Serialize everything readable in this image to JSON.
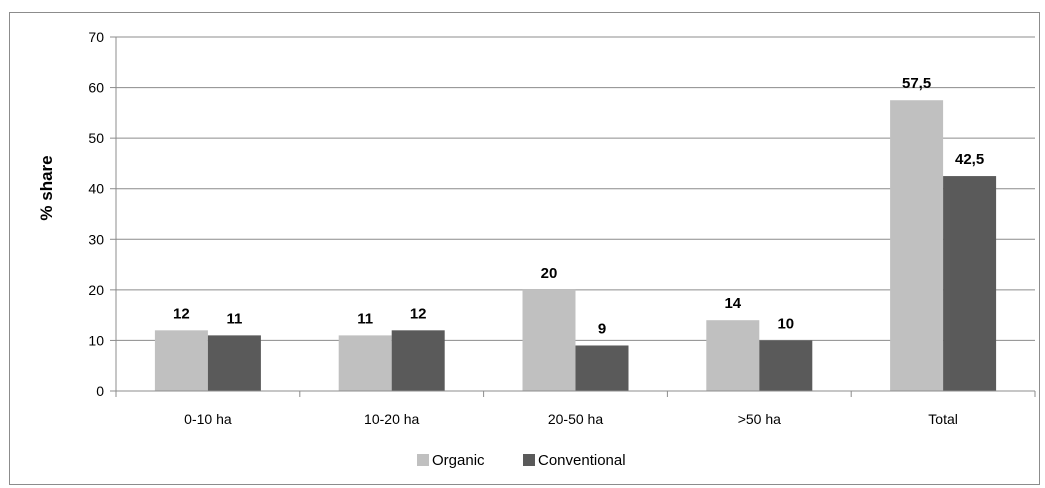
{
  "chart_data": {
    "type": "bar",
    "title": "",
    "xlabel": "",
    "ylabel": "% share",
    "ylim": [
      0,
      70
    ],
    "yticks": [
      0,
      10,
      20,
      30,
      40,
      50,
      60,
      70
    ],
    "grid": true,
    "legend_position": "bottom",
    "categories": [
      "0-10 ha",
      "10-20 ha",
      "20-50 ha",
      ">50 ha",
      "Total"
    ],
    "series": [
      {
        "name": "Organic",
        "values": [
          12,
          11,
          20,
          14,
          57.5
        ],
        "labels": [
          "12",
          "11",
          "20",
          "14",
          "57,5"
        ],
        "color": "#c0c0c0"
      },
      {
        "name": "Conventional",
        "values": [
          11,
          12,
          9,
          10,
          42.5
        ],
        "labels": [
          "11",
          "12",
          "9",
          "10",
          "42,5"
        ],
        "color": "#5a5a5a"
      }
    ]
  }
}
